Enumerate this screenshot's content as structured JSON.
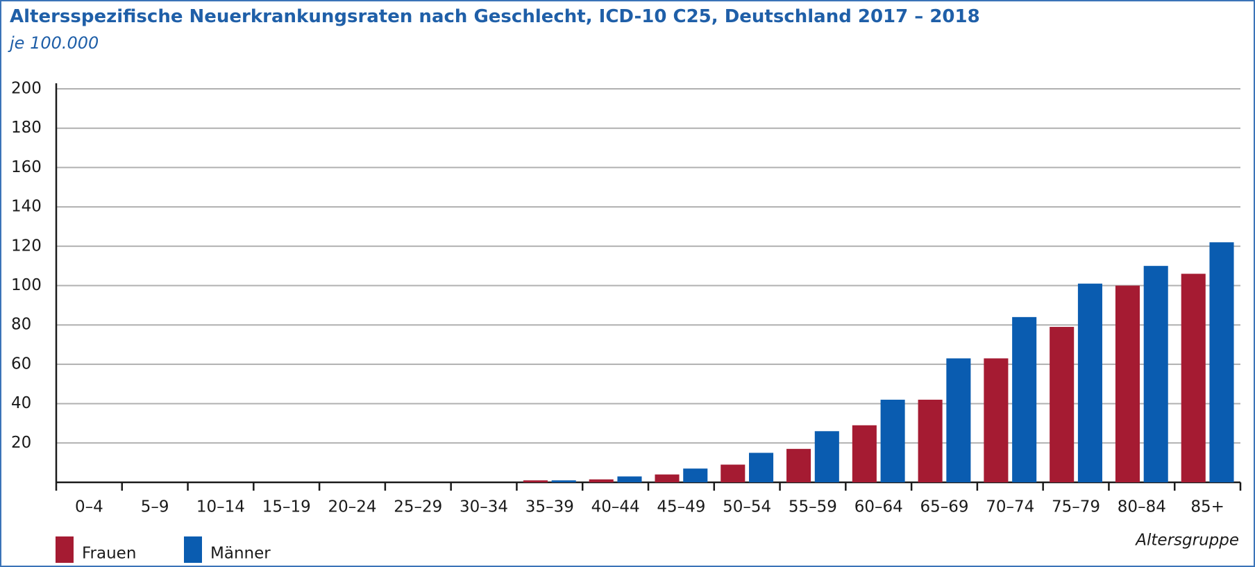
{
  "chart_data": {
    "type": "bar",
    "title": "Altersspezifische Neuerkrankungsraten nach Geschlecht, ICD-10 C25, Deutschland 2017 – 2018",
    "subtitle": "je 100.000",
    "x_label": "Altersgruppe",
    "categories": [
      "0–4",
      "5–9",
      "10–14",
      "15–19",
      "20–24",
      "25–29",
      "30–34",
      "35–39",
      "40–44",
      "45–49",
      "50–54",
      "55–59",
      "60–64",
      "65–69",
      "70–74",
      "75–79",
      "80–84",
      "85+"
    ],
    "series": [
      {
        "name": "Frauen",
        "color": "#a51b32",
        "values": [
          0,
          0,
          0,
          0,
          0,
          0,
          0,
          1,
          1.5,
          4,
          9,
          17,
          29,
          42,
          63,
          79,
          100,
          106
        ]
      },
      {
        "name": "Männer",
        "color": "#0a5cb0",
        "values": [
          0,
          0,
          0,
          0,
          0,
          0,
          0,
          1,
          3,
          7,
          15,
          26,
          42,
          63,
          84,
          101,
          110,
          122
        ]
      }
    ],
    "ylim": [
      0,
      200
    ],
    "yticks": [
      20,
      40,
      60,
      80,
      100,
      120,
      140,
      160,
      180,
      200
    ],
    "grid": true
  }
}
